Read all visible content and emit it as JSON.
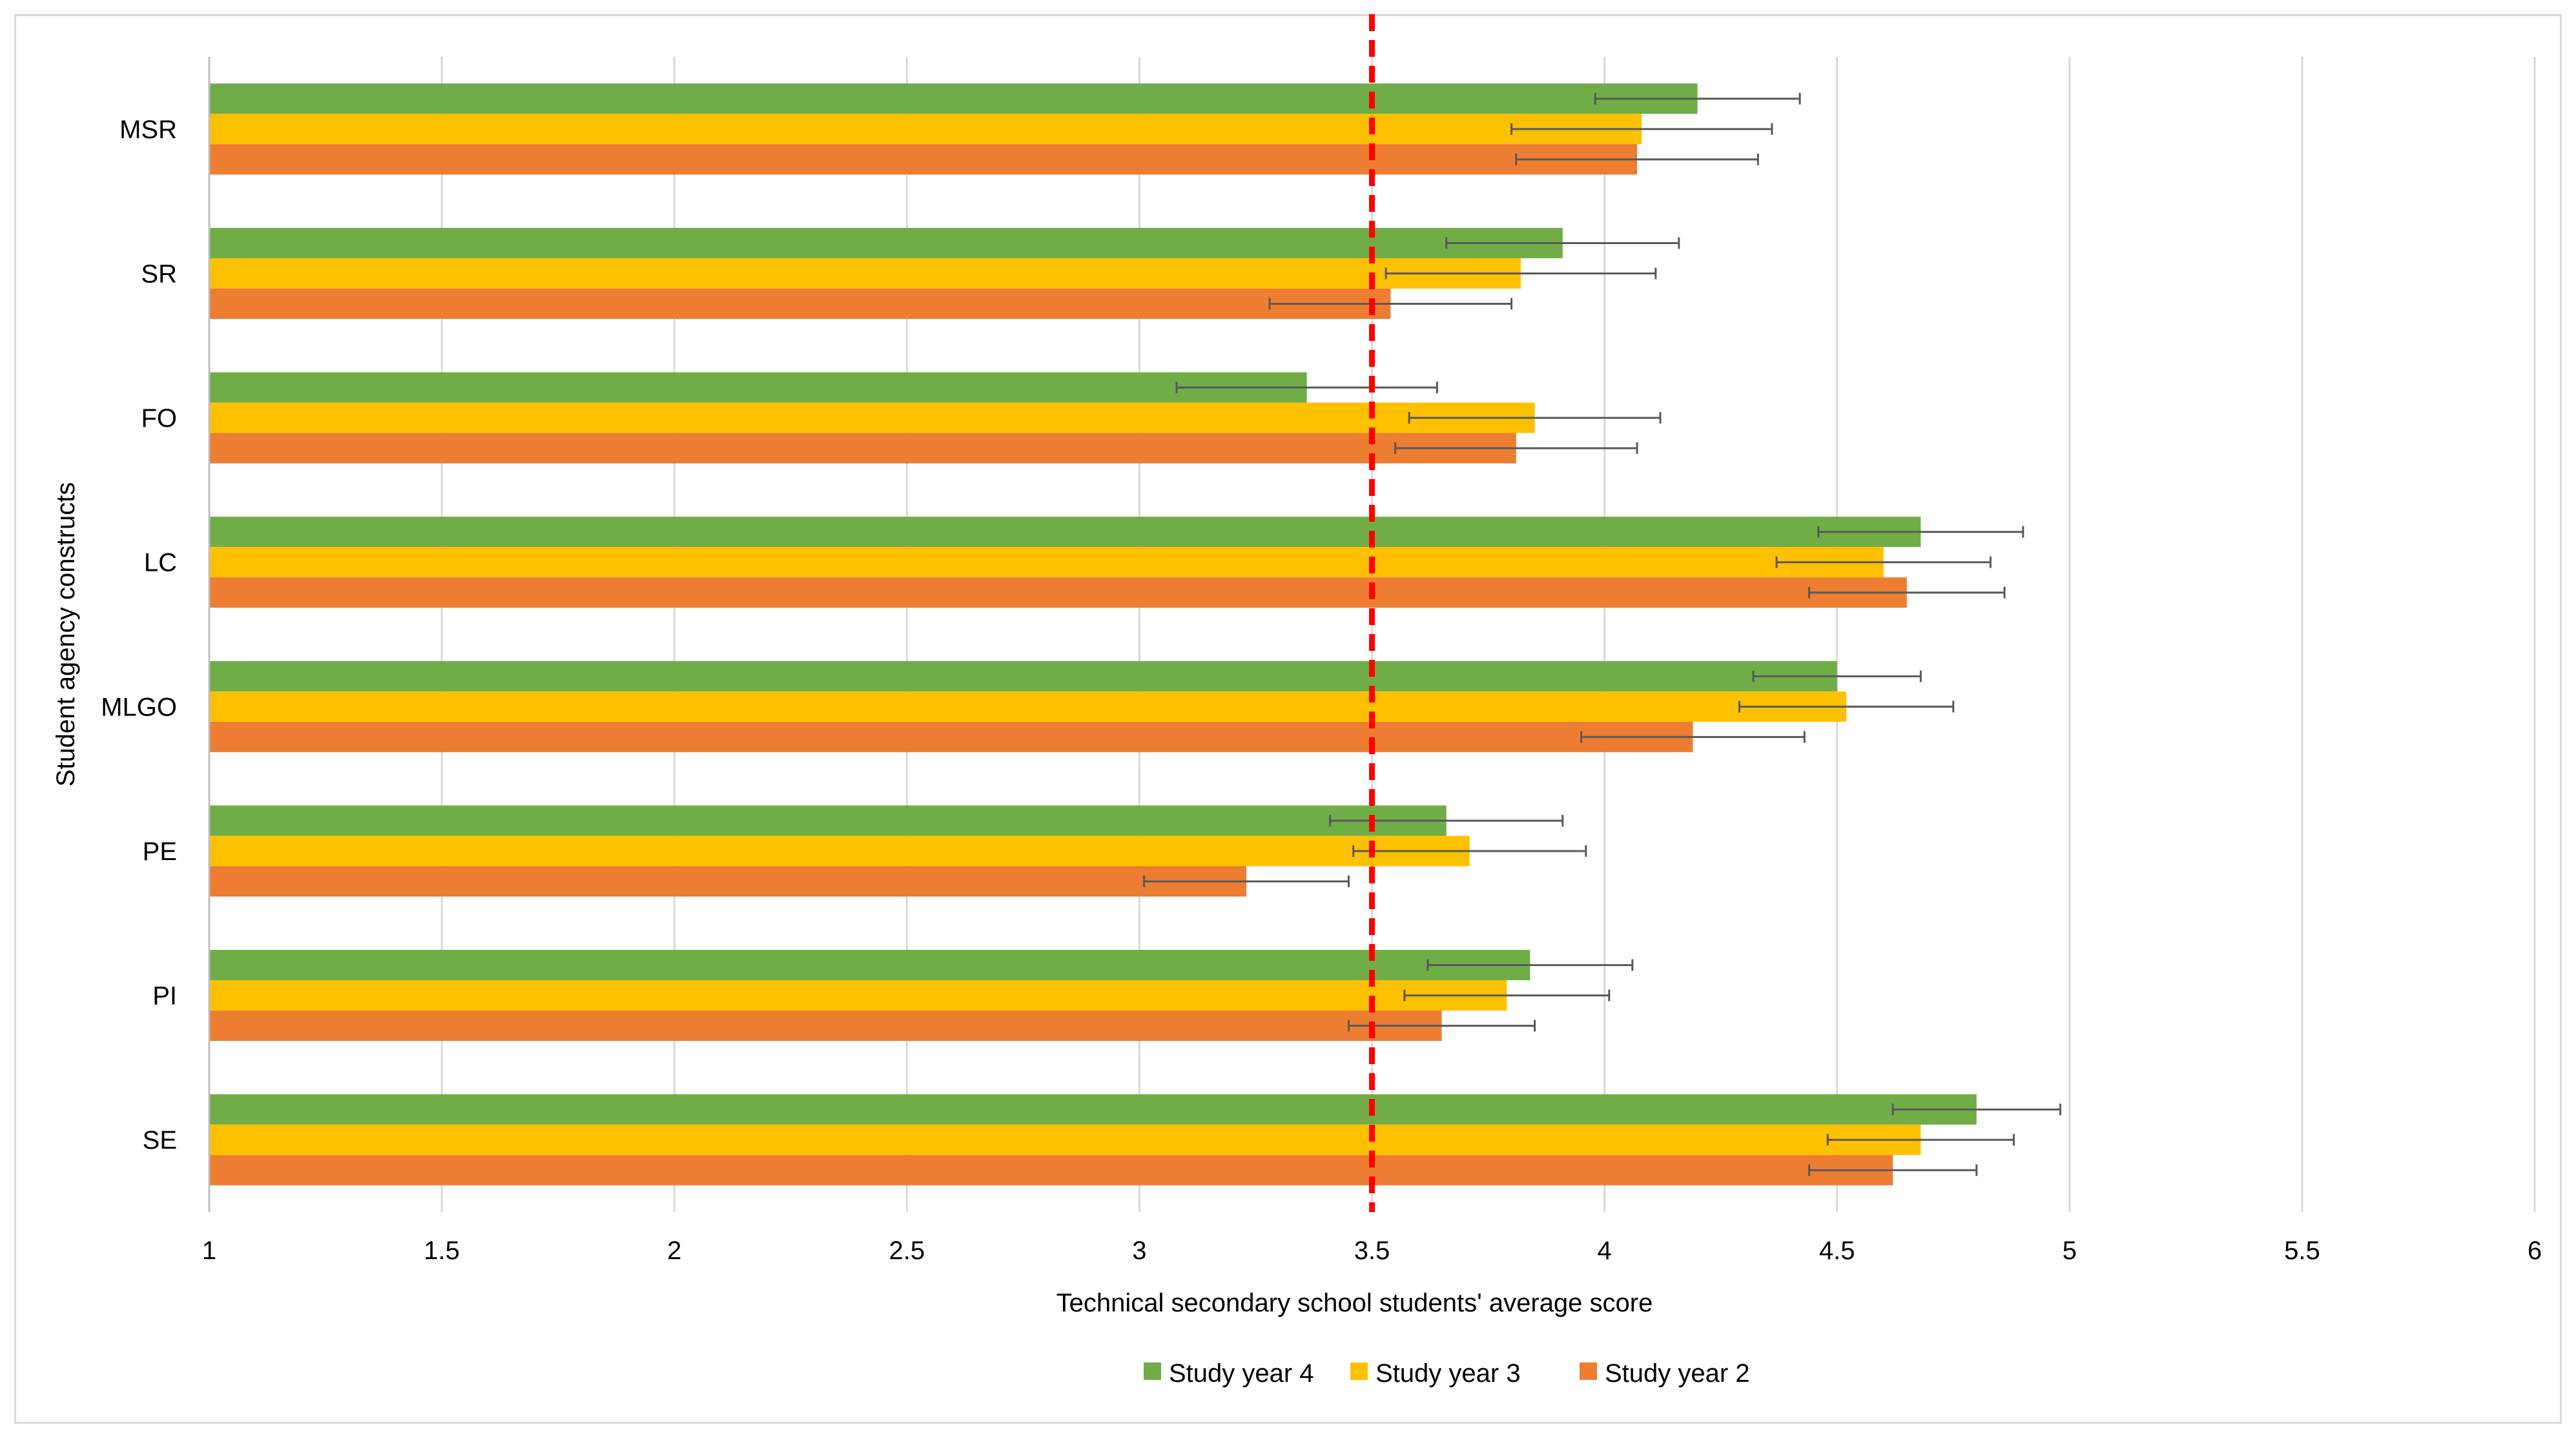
{
  "chart_data": {
    "type": "bar",
    "orientation": "horizontal",
    "title": "",
    "xlabel": "Technical secondary school students' average score",
    "ylabel": "Student agency constructs",
    "xlim": [
      1,
      6
    ],
    "xticks": [
      1,
      1.5,
      2,
      2.5,
      3,
      3.5,
      4,
      4.5,
      5,
      5.5,
      6
    ],
    "grid": "vertical",
    "reference_line": {
      "value": 3.5,
      "style": "dashed",
      "color": "#ff0000"
    },
    "categories": [
      "MSR",
      "SR",
      "FO",
      "LC",
      "MLGO",
      "PE",
      "PI",
      "SE"
    ],
    "series": [
      {
        "name": "Study year 4",
        "color": "#70ad47",
        "values": [
          4.2,
          3.91,
          3.36,
          4.68,
          4.5,
          3.66,
          3.84,
          4.8
        ],
        "errors": [
          0.22,
          0.25,
          0.28,
          0.22,
          0.18,
          0.25,
          0.22,
          0.18
        ]
      },
      {
        "name": "Study year 3",
        "color": "#ffc000",
        "values": [
          4.08,
          3.82,
          3.85,
          4.6,
          4.52,
          3.71,
          3.79,
          4.68
        ],
        "errors": [
          0.28,
          0.29,
          0.27,
          0.23,
          0.23,
          0.25,
          0.22,
          0.2
        ]
      },
      {
        "name": "Study year 2",
        "color": "#ed7d31",
        "values": [
          4.07,
          3.54,
          3.81,
          4.65,
          4.19,
          3.23,
          3.65,
          4.62
        ],
        "errors": [
          0.26,
          0.26,
          0.26,
          0.21,
          0.24,
          0.22,
          0.2,
          0.18
        ]
      }
    ],
    "legend": "bottom"
  }
}
